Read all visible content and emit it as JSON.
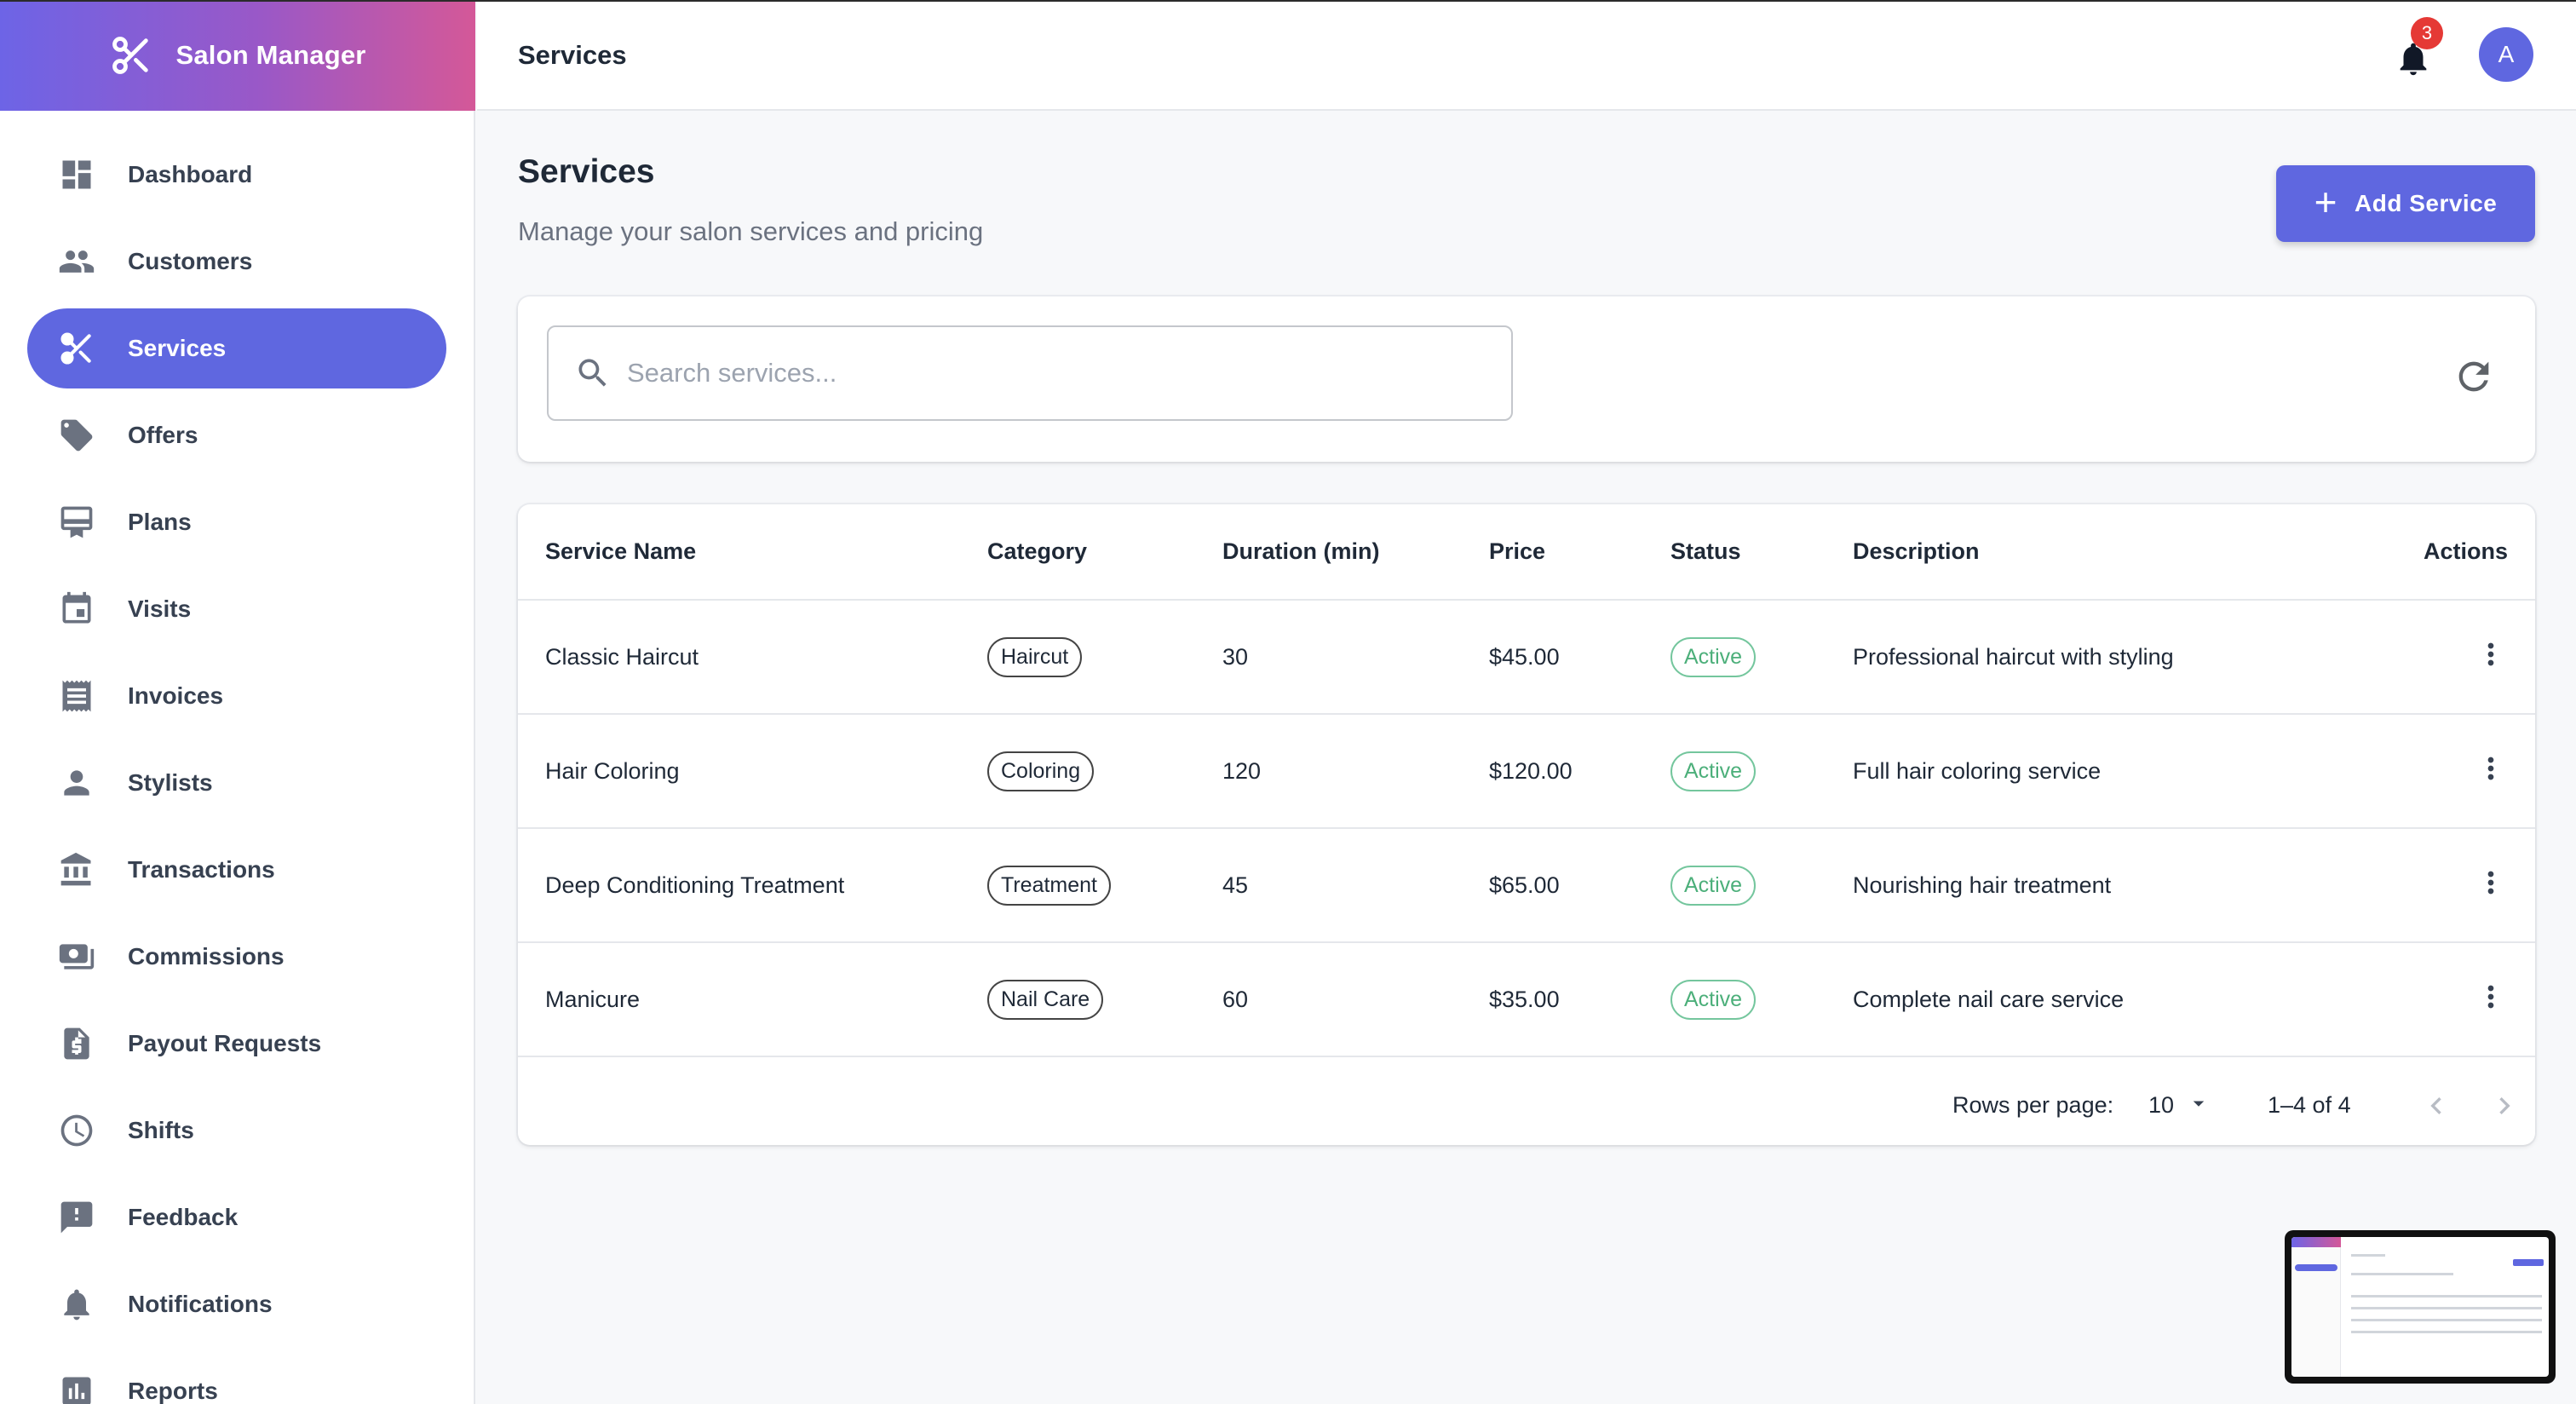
{
  "app": {
    "brand_title": "Salon Manager",
    "accent_color": "#5f67e0",
    "brand_gradient": [
      "#6d64e6",
      "#d45898"
    ]
  },
  "sidebar": {
    "items": [
      {
        "label": "Dashboard",
        "icon": "dashboard-icon"
      },
      {
        "label": "Customers",
        "icon": "people-icon"
      },
      {
        "label": "Services",
        "icon": "scissors-icon",
        "active": true
      },
      {
        "label": "Offers",
        "icon": "tag-icon"
      },
      {
        "label": "Plans",
        "icon": "card-icon"
      },
      {
        "label": "Visits",
        "icon": "calendar-icon"
      },
      {
        "label": "Invoices",
        "icon": "receipt-icon"
      },
      {
        "label": "Stylists",
        "icon": "person-icon"
      },
      {
        "label": "Transactions",
        "icon": "bank-icon"
      },
      {
        "label": "Commissions",
        "icon": "cash-icon"
      },
      {
        "label": "Payout Requests",
        "icon": "request-quote-icon"
      },
      {
        "label": "Shifts",
        "icon": "clock-icon"
      },
      {
        "label": "Feedback",
        "icon": "feedback-icon"
      },
      {
        "label": "Notifications",
        "icon": "bell-icon"
      },
      {
        "label": "Reports",
        "icon": "chart-icon"
      }
    ]
  },
  "header": {
    "title": "Services",
    "notification_count": "3",
    "avatar_initial": "A"
  },
  "main": {
    "title": "Services",
    "subtitle": "Manage your salon services and pricing",
    "add_button_label": "Add Service",
    "search_placeholder": "Search services...",
    "search_value": ""
  },
  "table": {
    "columns": [
      "Service Name",
      "Category",
      "Duration (min)",
      "Price",
      "Status",
      "Description",
      "Actions"
    ],
    "rows": [
      {
        "name": "Classic Haircut",
        "category": "Haircut",
        "duration": "30",
        "price": "$45.00",
        "status": "Active",
        "description": "Professional haircut with styling"
      },
      {
        "name": "Hair Coloring",
        "category": "Coloring",
        "duration": "120",
        "price": "$120.00",
        "status": "Active",
        "description": "Full hair coloring service"
      },
      {
        "name": "Deep Conditioning Treatment",
        "category": "Treatment",
        "duration": "45",
        "price": "$65.00",
        "status": "Active",
        "description": "Nourishing hair treatment"
      },
      {
        "name": "Manicure",
        "category": "Nail Care",
        "duration": "60",
        "price": "$35.00",
        "status": "Active",
        "description": "Complete nail care service"
      }
    ],
    "status_color": "#4caf7a"
  },
  "pagination": {
    "rows_per_page_label": "Rows per page:",
    "rows_per_page_value": "10",
    "range_label": "1–4 of 4"
  }
}
